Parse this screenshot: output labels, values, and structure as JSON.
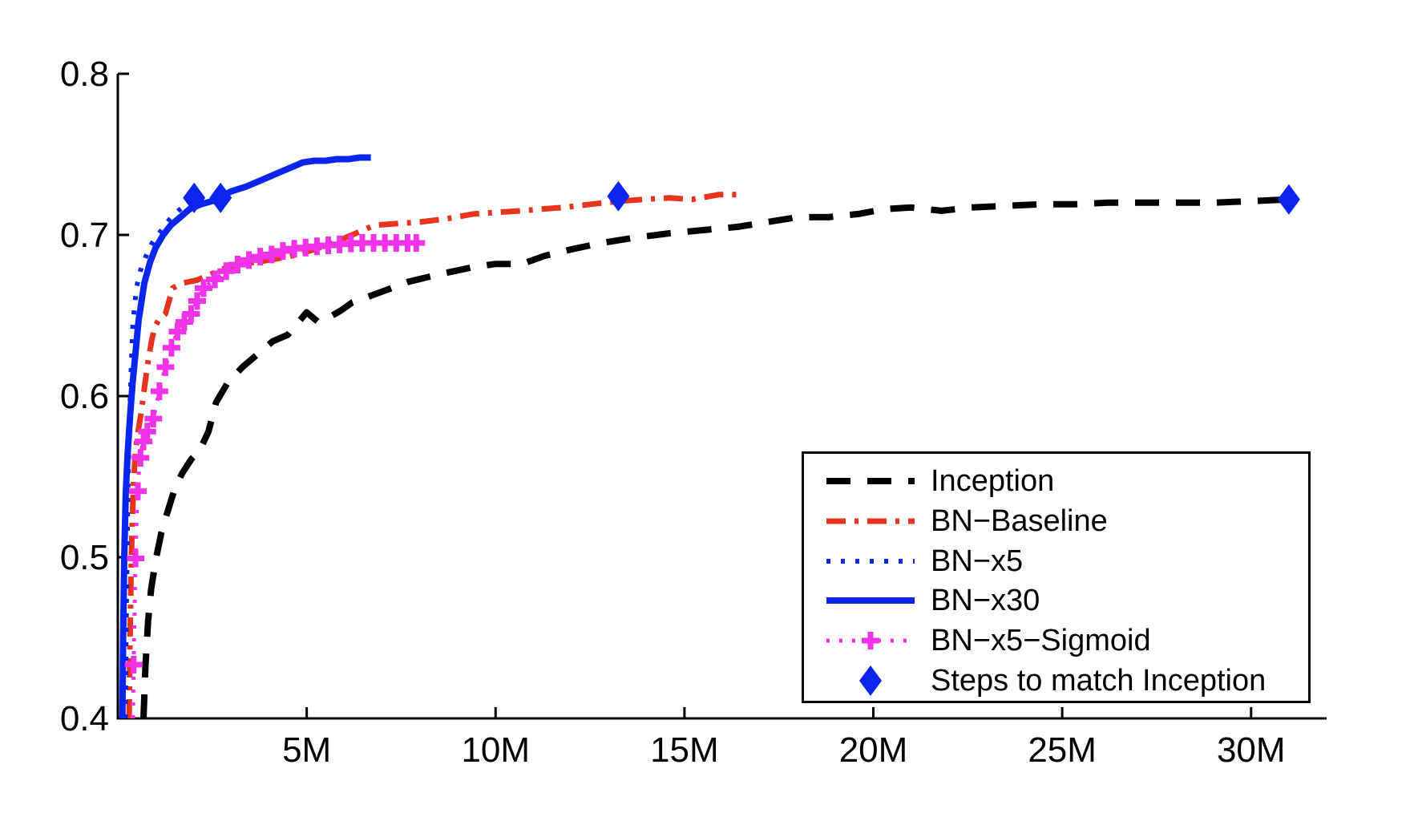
{
  "figure": {
    "background": "#ffffff",
    "axis_color": "#000000"
  },
  "colors": {
    "black": "#000000",
    "red": "#e8341c",
    "blue": "#0a26ee",
    "magenta": "#f032e8"
  },
  "chart_data": {
    "type": "line",
    "title": "",
    "xlabel": "",
    "ylabel": "",
    "xlim": [
      0,
      32
    ],
    "ylim": [
      0.4,
      0.8
    ],
    "grid": false,
    "box": false,
    "xticks": [
      {
        "value": 5,
        "label": "5M"
      },
      {
        "value": 10,
        "label": "10M"
      },
      {
        "value": 15,
        "label": "15M"
      },
      {
        "value": 20,
        "label": "20M"
      },
      {
        "value": 25,
        "label": "25M"
      },
      {
        "value": 30,
        "label": "30M"
      }
    ],
    "yticks": [
      {
        "value": 0.4,
        "label": "0.4"
      },
      {
        "value": 0.5,
        "label": "0.5"
      },
      {
        "value": 0.6,
        "label": "0.6"
      },
      {
        "value": 0.7,
        "label": "0.7"
      },
      {
        "value": 0.8,
        "label": "0.8"
      }
    ],
    "series": [
      {
        "id": "inception",
        "name": "Inception",
        "color": "#000000",
        "line_style": "dashed",
        "points": [
          [
            0.68,
            0.4
          ],
          [
            0.73,
            0.432
          ],
          [
            0.8,
            0.46
          ],
          [
            0.88,
            0.48
          ],
          [
            1.0,
            0.498
          ],
          [
            1.15,
            0.515
          ],
          [
            1.3,
            0.527
          ],
          [
            1.5,
            0.542
          ],
          [
            1.7,
            0.552
          ],
          [
            1.95,
            0.561
          ],
          [
            2.16,
            0.566
          ],
          [
            2.4,
            0.578
          ],
          [
            2.6,
            0.596
          ],
          [
            2.9,
            0.608
          ],
          [
            3.3,
            0.618
          ],
          [
            3.7,
            0.626
          ],
          [
            4.1,
            0.634
          ],
          [
            4.5,
            0.638
          ],
          [
            5.0,
            0.652
          ],
          [
            5.3,
            0.646
          ],
          [
            5.6,
            0.649
          ],
          [
            5.9,
            0.653
          ],
          [
            6.2,
            0.658
          ],
          [
            6.9,
            0.664
          ],
          [
            7.7,
            0.671
          ],
          [
            8.6,
            0.676
          ],
          [
            9.4,
            0.68
          ],
          [
            10.0,
            0.682
          ],
          [
            10.7,
            0.682
          ],
          [
            11.3,
            0.687
          ],
          [
            12.0,
            0.691
          ],
          [
            12.8,
            0.695
          ],
          [
            13.6,
            0.698
          ],
          [
            14.6,
            0.701
          ],
          [
            15.5,
            0.703
          ],
          [
            16.4,
            0.705
          ],
          [
            17.2,
            0.708
          ],
          [
            18.0,
            0.711
          ],
          [
            18.8,
            0.711
          ],
          [
            19.6,
            0.713
          ],
          [
            20.3,
            0.716
          ],
          [
            21.0,
            0.717
          ],
          [
            21.8,
            0.715
          ],
          [
            22.6,
            0.717
          ],
          [
            23.5,
            0.718
          ],
          [
            24.4,
            0.719
          ],
          [
            25.3,
            0.719
          ],
          [
            26.2,
            0.72
          ],
          [
            27.2,
            0.72
          ],
          [
            28.1,
            0.72
          ],
          [
            29.0,
            0.72
          ],
          [
            30.0,
            0.721
          ],
          [
            31.0,
            0.722
          ]
        ]
      },
      {
        "id": "bn-baseline",
        "name": "BN−Baseline",
        "color": "#e8341c",
        "line_style": "dashdot",
        "points": [
          [
            0.3,
            0.4
          ],
          [
            0.32,
            0.445
          ],
          [
            0.35,
            0.49
          ],
          [
            0.38,
            0.52
          ],
          [
            0.42,
            0.548
          ],
          [
            0.47,
            0.566
          ],
          [
            0.55,
            0.58
          ],
          [
            0.62,
            0.59
          ],
          [
            0.72,
            0.608
          ],
          [
            0.81,
            0.623
          ],
          [
            0.9,
            0.635
          ],
          [
            0.98,
            0.643
          ],
          [
            1.1,
            0.648
          ],
          [
            1.26,
            0.651
          ],
          [
            1.45,
            0.667
          ],
          [
            1.7,
            0.67
          ],
          [
            2.1,
            0.672
          ],
          [
            2.5,
            0.676
          ],
          [
            2.8,
            0.679
          ],
          [
            3.3,
            0.682
          ],
          [
            3.9,
            0.684
          ],
          [
            4.4,
            0.686
          ],
          [
            4.8,
            0.688
          ],
          [
            5.2,
            0.691
          ],
          [
            5.6,
            0.694
          ],
          [
            6.1,
            0.699
          ],
          [
            6.8,
            0.706
          ],
          [
            7.4,
            0.707
          ],
          [
            8.0,
            0.708
          ],
          [
            8.7,
            0.71
          ],
          [
            9.4,
            0.713
          ],
          [
            10.0,
            0.714
          ],
          [
            10.7,
            0.715
          ],
          [
            11.2,
            0.716
          ],
          [
            11.8,
            0.717
          ],
          [
            12.5,
            0.719
          ],
          [
            13.3,
            0.721
          ],
          [
            13.9,
            0.722
          ],
          [
            14.6,
            0.723
          ],
          [
            15.2,
            0.722
          ],
          [
            15.9,
            0.725
          ],
          [
            16.4,
            0.725
          ]
        ]
      },
      {
        "id": "bn-x5",
        "name": "BN−x5",
        "color": "#0a26ee",
        "line_style": "dotted",
        "points": [
          [
            0.2,
            0.4
          ],
          [
            0.23,
            0.47
          ],
          [
            0.26,
            0.53
          ],
          [
            0.3,
            0.58
          ],
          [
            0.35,
            0.615
          ],
          [
            0.4,
            0.645
          ],
          [
            0.49,
            0.667
          ],
          [
            0.6,
            0.678
          ],
          [
            0.73,
            0.686
          ],
          [
            0.88,
            0.694
          ],
          [
            1.09,
            0.701
          ],
          [
            1.35,
            0.709
          ],
          [
            1.6,
            0.715
          ],
          [
            1.82,
            0.719
          ],
          [
            2.05,
            0.722
          ]
        ]
      },
      {
        "id": "bn-x30",
        "name": "BN−x30",
        "color": "#0a26ee",
        "line_style": "solid",
        "points": [
          [
            0.12,
            0.4
          ],
          [
            0.14,
            0.45
          ],
          [
            0.17,
            0.5
          ],
          [
            0.21,
            0.54
          ],
          [
            0.26,
            0.565
          ],
          [
            0.33,
            0.59
          ],
          [
            0.4,
            0.61
          ],
          [
            0.46,
            0.625
          ],
          [
            0.55,
            0.647
          ],
          [
            0.7,
            0.67
          ],
          [
            0.85,
            0.683
          ],
          [
            1.0,
            0.692
          ],
          [
            1.2,
            0.7
          ],
          [
            1.4,
            0.706
          ],
          [
            1.65,
            0.711
          ],
          [
            1.9,
            0.716
          ],
          [
            2.2,
            0.719
          ],
          [
            2.5,
            0.721
          ],
          [
            2.75,
            0.724
          ],
          [
            3.0,
            0.727
          ],
          [
            3.4,
            0.73
          ],
          [
            3.8,
            0.734
          ],
          [
            4.2,
            0.738
          ],
          [
            4.6,
            0.742
          ],
          [
            4.9,
            0.745
          ],
          [
            5.2,
            0.746
          ],
          [
            5.5,
            0.746
          ],
          [
            5.8,
            0.747
          ],
          [
            6.1,
            0.747
          ],
          [
            6.4,
            0.748
          ],
          [
            6.7,
            0.748
          ]
        ]
      },
      {
        "id": "bn-x5-sigmoid",
        "name": "BN−x5−Sigmoid",
        "color": "#f032e8",
        "line_style": "dotted-plus",
        "points": [
          [
            0.4,
            0.4
          ],
          [
            0.43,
            0.45
          ],
          [
            0.46,
            0.49
          ],
          [
            0.5,
            0.527
          ],
          [
            0.56,
            0.555
          ],
          [
            0.65,
            0.57
          ],
          [
            0.78,
            0.578
          ],
          [
            0.94,
            0.586
          ],
          [
            1.1,
            0.603
          ],
          [
            1.26,
            0.618
          ],
          [
            1.42,
            0.63
          ],
          [
            1.58,
            0.64
          ],
          [
            1.76,
            0.646
          ],
          [
            1.94,
            0.651
          ],
          [
            2.1,
            0.659
          ],
          [
            2.27,
            0.667
          ],
          [
            2.6,
            0.673
          ],
          [
            2.9,
            0.678
          ],
          [
            3.2,
            0.682
          ],
          [
            3.65,
            0.686
          ],
          [
            4.1,
            0.688
          ],
          [
            4.5,
            0.691
          ],
          [
            4.9,
            0.692
          ],
          [
            5.3,
            0.693
          ],
          [
            5.8,
            0.694
          ],
          [
            6.3,
            0.695
          ],
          [
            6.9,
            0.695
          ],
          [
            7.5,
            0.695
          ],
          [
            7.9,
            0.695
          ]
        ],
        "marker_x": [
          0.42,
          0.47,
          0.53,
          0.6,
          0.68,
          0.78,
          0.94,
          1.1,
          1.26,
          1.42,
          1.58,
          1.76,
          1.94,
          2.1,
          2.27,
          2.57,
          2.87,
          3.17,
          3.47,
          3.77,
          4.07,
          4.37,
          4.67,
          4.97,
          5.27,
          5.57,
          5.87,
          6.17,
          6.47,
          6.77,
          7.07,
          7.37,
          7.67,
          7.9
        ]
      },
      {
        "id": "steps-match",
        "name": "Steps to match Inception",
        "color": "#0a26ee",
        "line_style": "diamond-scatter",
        "points": [
          [
            2.02,
            0.723
          ],
          [
            2.72,
            0.723
          ],
          [
            13.25,
            0.724
          ],
          [
            31.0,
            0.722
          ]
        ]
      }
    ],
    "legend": {
      "position": "lower-right",
      "entries": [
        {
          "id": "inception",
          "label": "Inception",
          "swatch": "dashed",
          "color": "#000000"
        },
        {
          "id": "bn-baseline",
          "label": "BN−Baseline",
          "swatch": "dashdot",
          "color": "#e8341c"
        },
        {
          "id": "bn-x5",
          "label": "BN−x5",
          "swatch": "dotted",
          "color": "#0a26ee"
        },
        {
          "id": "bn-x30",
          "label": "BN−x30",
          "swatch": "solid",
          "color": "#0a26ee"
        },
        {
          "id": "bn-x5-sigmoid",
          "label": "BN−x5−Sigmoid",
          "swatch": "dotted-plus",
          "color": "#f032e8"
        },
        {
          "id": "steps-match",
          "label": "Steps to match Inception",
          "swatch": "diamond",
          "color": "#0a26ee"
        }
      ]
    }
  }
}
